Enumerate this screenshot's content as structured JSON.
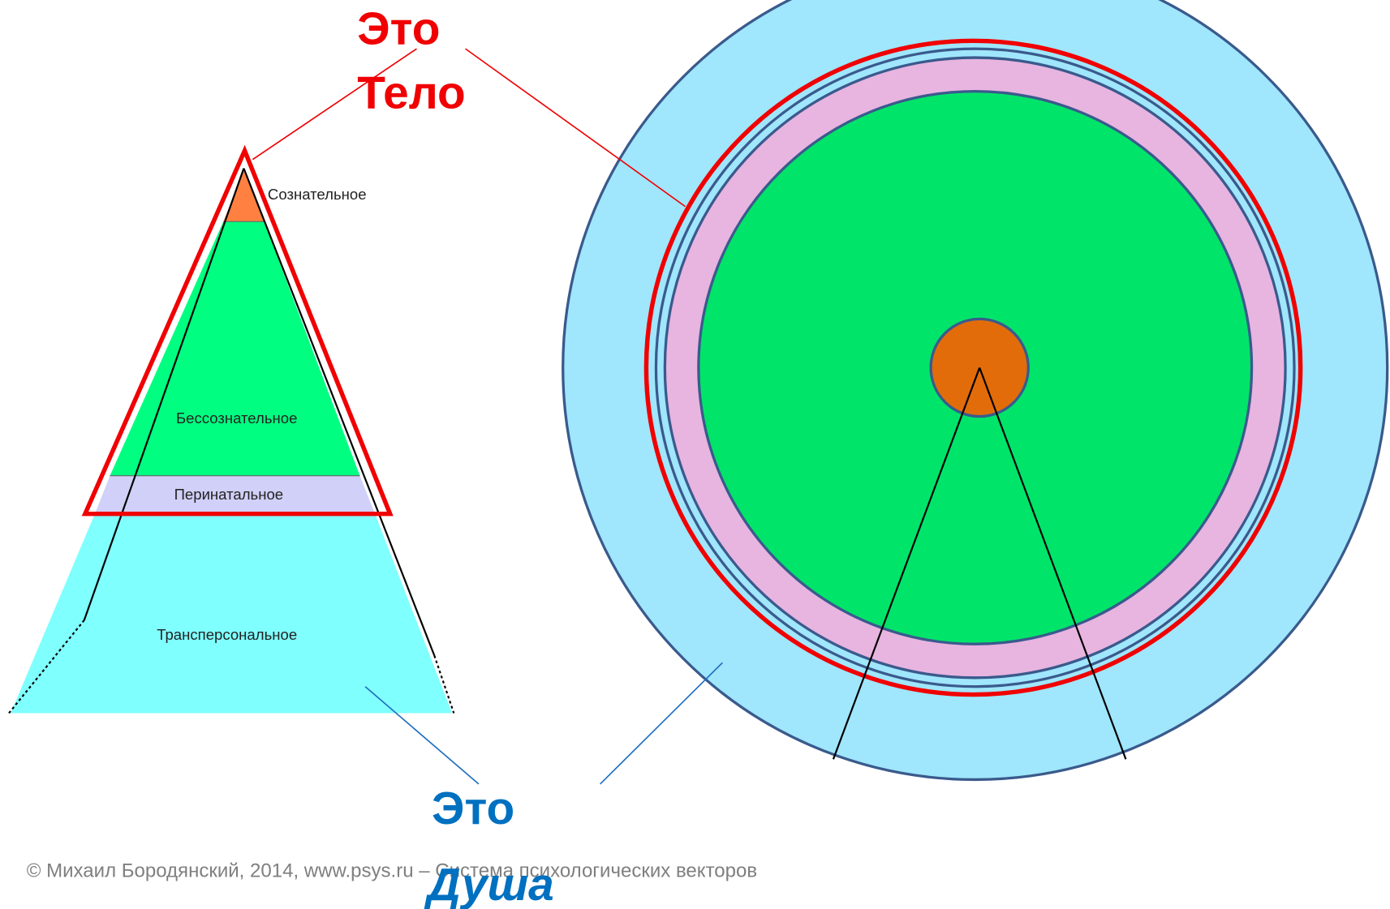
{
  "body_label": {
    "line1": "Это",
    "line2": "Тело"
  },
  "pyramid": {
    "layers": [
      "Сознательное",
      "Бессознательное",
      "Перинатальное",
      "Трансперсональное"
    ]
  },
  "soul_label": {
    "line1": "Это",
    "line2": "Душа"
  },
  "footer": "© Михаил Бородянский, 2014, www.psys.ru – Система психологических векторов"
}
